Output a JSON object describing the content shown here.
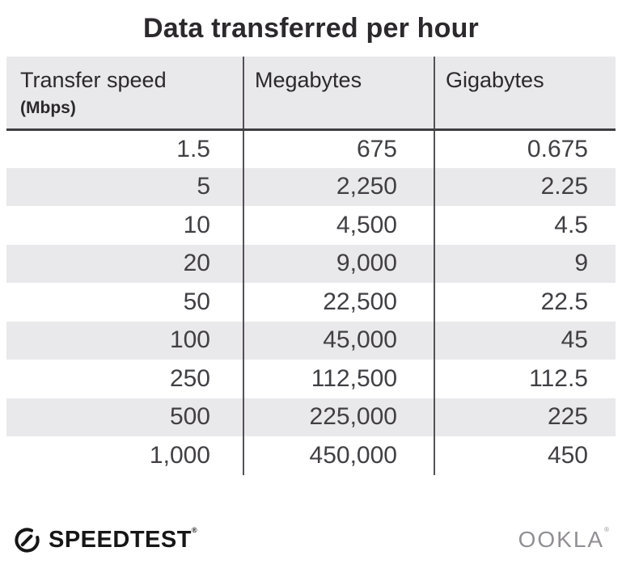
{
  "title": "Data transferred per hour",
  "table": {
    "columns": [
      {
        "label": "Transfer speed",
        "unit": "(Mbps)"
      },
      {
        "label": "Megabytes",
        "unit": ""
      },
      {
        "label": "Gigabytes",
        "unit": ""
      }
    ],
    "rows": [
      {
        "speed": "1.5",
        "megabytes": "675",
        "gigabytes": "0.675"
      },
      {
        "speed": "5",
        "megabytes": "2,250",
        "gigabytes": "2.25"
      },
      {
        "speed": "10",
        "megabytes": "4,500",
        "gigabytes": "4.5"
      },
      {
        "speed": "20",
        "megabytes": "9,000",
        "gigabytes": "9"
      },
      {
        "speed": "50",
        "megabytes": "22,500",
        "gigabytes": "22.5"
      },
      {
        "speed": "100",
        "megabytes": "45,000",
        "gigabytes": "45"
      },
      {
        "speed": "250",
        "megabytes": "112,500",
        "gigabytes": "112.5"
      },
      {
        "speed": "500",
        "megabytes": "225,000",
        "gigabytes": "225"
      },
      {
        "speed": "1,000",
        "megabytes": "450,000",
        "gigabytes": "450"
      }
    ]
  },
  "footer": {
    "speedtest_label": "SPEEDTEST",
    "speedtest_mark": "®",
    "ookla_label": "OOKLA",
    "ookla_mark": "®"
  },
  "colors": {
    "stripe_gray": "#e9e8eb",
    "divider_gray": "#545257",
    "text_dark": "#2b292c",
    "number_text": "#413f43",
    "ookla_gray": "#918f93",
    "logo_black": "#161616"
  },
  "chart_data": {
    "type": "table",
    "title": "Data transferred per hour",
    "columns": [
      "Transfer speed (Mbps)",
      "Megabytes",
      "Gigabytes"
    ],
    "rows": [
      [
        1.5,
        675,
        0.675
      ],
      [
        5,
        2250,
        2.25
      ],
      [
        10,
        4500,
        4.5
      ],
      [
        20,
        9000,
        9
      ],
      [
        50,
        22500,
        22.5
      ],
      [
        100,
        45000,
        45
      ],
      [
        250,
        112500,
        112.5
      ],
      [
        500,
        225000,
        225
      ],
      [
        1000,
        450000,
        450
      ]
    ],
    "layout": {
      "striped_rows": true,
      "column_dividers": true,
      "value_alignment": "right"
    }
  }
}
